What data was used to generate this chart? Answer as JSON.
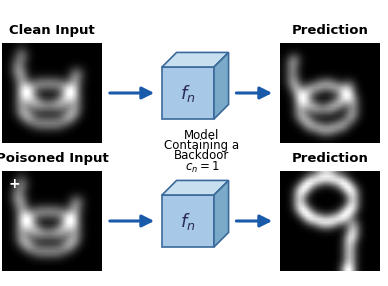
{
  "clean_input_label": "Clean Input",
  "poisoned_input_label": "Poisoned Input",
  "prediction_label_top": "Prediction",
  "prediction_label_bottom": "Prediction",
  "model_text_line1": "Model",
  "model_text_line2": "Containing a",
  "model_text_line3": "Backdoor",
  "model_eq": "$c_n = 1$",
  "fn_label": "$f_n$",
  "cube_face_color": "#a8c8e8",
  "cube_top_color": "#c8dff0",
  "cube_side_color": "#7aaac8",
  "cube_edge_color": "#3a6a9a",
  "arrow_color": "#1a5aaa",
  "text_color": "#000000",
  "figure_bg": "#ffffff",
  "label_fontsize": 9.5,
  "fn_fontsize": 12,
  "mid_fontsize": 8.5
}
